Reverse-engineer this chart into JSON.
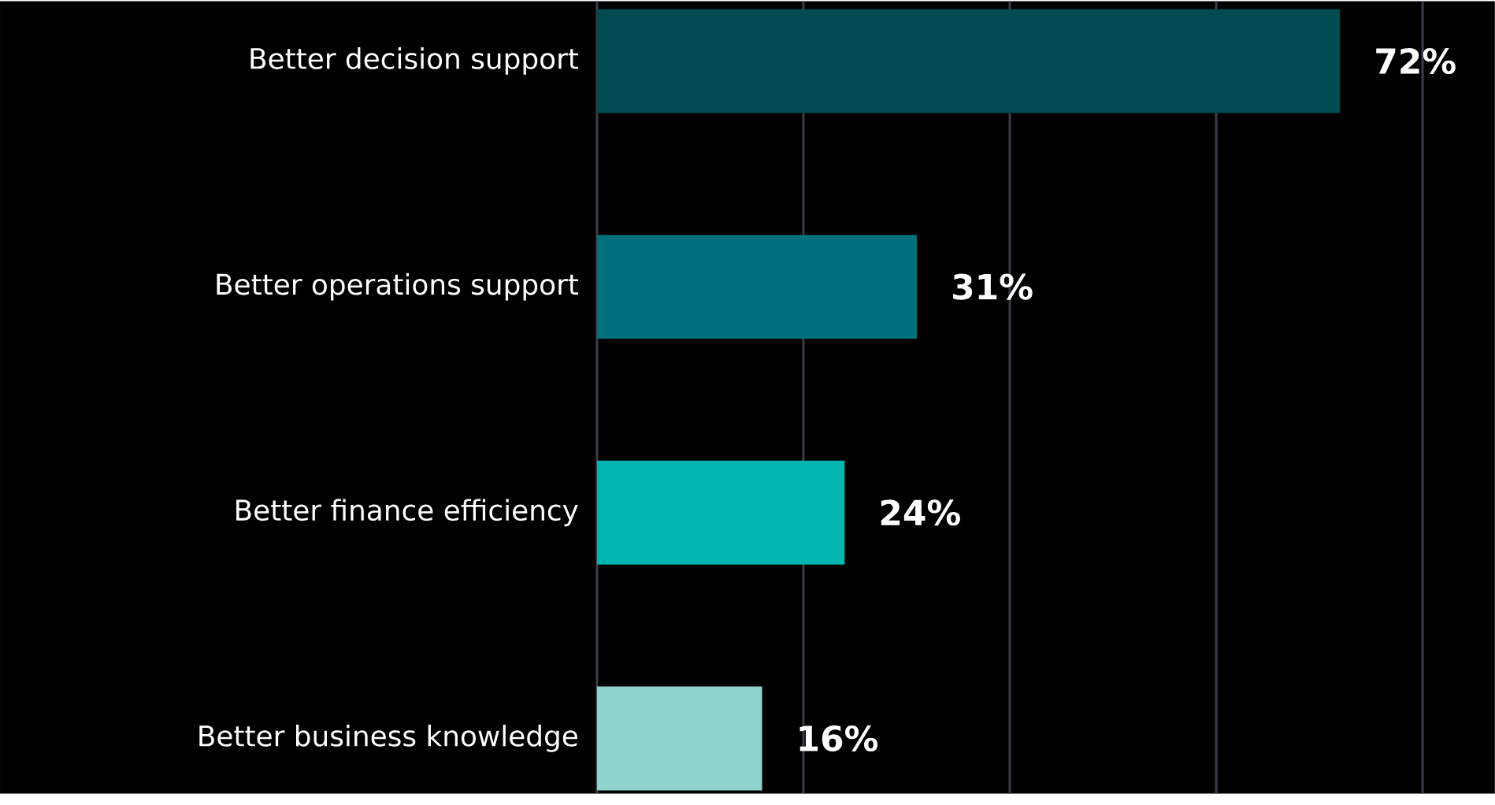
{
  "chart_data": {
    "type": "bar",
    "orientation": "horizontal",
    "categories": [
      "Better decision support",
      "Better operations support",
      "Better finance efficiency",
      "Better business knowledge"
    ],
    "values": [
      72,
      31,
      24,
      16
    ],
    "value_labels": [
      "72%",
      "31%",
      "24%",
      "16%"
    ],
    "colors": [
      "#004a52",
      "#00717c",
      "#00b5b0",
      "#8fd4cc"
    ],
    "xlim": [
      0,
      87
    ],
    "xticks": [
      {
        "value": 0,
        "label": null
      },
      {
        "value": 20,
        "label": null
      },
      {
        "value": 40,
        "label": null
      },
      {
        "value": 60,
        "label": null
      },
      {
        "value": 80,
        "label": null
      }
    ],
    "grid": "x",
    "tick_labels": "y"
  }
}
